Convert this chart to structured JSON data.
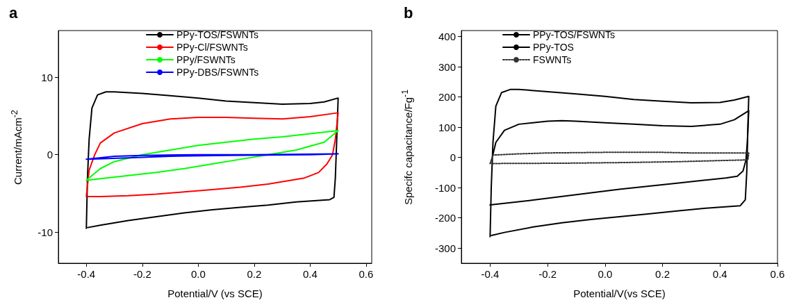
{
  "chart_data": [
    {
      "type": "line",
      "title": "a",
      "xlabel": "Potential/V (vs SCE)",
      "ylabel": "Current/mAcm$^{-2}$",
      "xlim": [
        -0.5,
        0.62
      ],
      "xticks": [
        -0.4,
        -0.2,
        {
          "value": 0,
          "label": "0.0"
        },
        0.2,
        0.4,
        0.6
      ],
      "ylim": [
        -14,
        16
      ],
      "yticks": [
        -10,
        0,
        10
      ],
      "grid": false,
      "legend": "top",
      "marker": "none",
      "line_style": "solid",
      "series": [
        {
          "name": "PPy-TOS/FSWNTs",
          "color": "#000000",
          "x": [
            -0.4,
            -0.396,
            -0.39,
            -0.38,
            -0.36,
            -0.33,
            -0.3,
            -0.2,
            -0.1,
            0,
            0.1,
            0.2,
            0.3,
            0.4,
            0.45,
            0.5,
            0.495,
            0.49,
            0.485,
            0.47,
            0.35,
            0.25,
            0.15,
            0.05,
            -0.05,
            -0.15,
            -0.25,
            -0.35,
            -0.395
          ],
          "values": [
            -9.5,
            -3,
            2,
            6,
            7.7,
            8.1,
            8.1,
            7.9,
            7.6,
            7.3,
            6.9,
            6.7,
            6.5,
            6.6,
            6.8,
            7.3,
            2,
            -3,
            -5.5,
            -5.8,
            -6.1,
            -6.5,
            -6.8,
            -7.1,
            -7.5,
            -8,
            -8.5,
            -9.1,
            -9.4
          ]
        },
        {
          "name": "PPy-Cl/FSWNTs",
          "color": "#ff0000",
          "x": [
            -0.4,
            -0.39,
            -0.37,
            -0.35,
            -0.3,
            -0.2,
            -0.1,
            0,
            0.1,
            0.2,
            0.3,
            0.4,
            0.5,
            0.49,
            0.48,
            0.46,
            0.43,
            0.38,
            0.25,
            0.15,
            0.05,
            -0.05,
            -0.15,
            -0.25,
            -0.35,
            -0.395
          ],
          "values": [
            -5.4,
            -2,
            0,
            1.5,
            2.8,
            4,
            4.6,
            4.8,
            4.8,
            4.7,
            4.6,
            4.9,
            5.4,
            2,
            0,
            -1.2,
            -2.3,
            -3,
            -3.8,
            -4.2,
            -4.5,
            -4.8,
            -5.1,
            -5.3,
            -5.4,
            -5.4
          ]
        },
        {
          "name": "PPy/FSWNTs",
          "color": "#00ff00",
          "x": [
            -0.4,
            -0.35,
            -0.3,
            -0.2,
            -0.1,
            0,
            0.1,
            0.2,
            0.3,
            0.4,
            0.5,
            0.45,
            0.35,
            0.25,
            0.15,
            0.05,
            -0.05,
            -0.15,
            -0.25,
            -0.35,
            -0.395
          ],
          "values": [
            -3.3,
            -1.8,
            -0.9,
            0,
            0.6,
            1.2,
            1.6,
            2,
            2.3,
            2.7,
            3.1,
            1.6,
            0.6,
            0,
            -0.6,
            -1.2,
            -1.8,
            -2.3,
            -2.7,
            -3.1,
            -3.3
          ]
        },
        {
          "name": "PPy-DBS/FSWNTs",
          "color": "#0000ff",
          "x": [
            -0.4,
            -0.3,
            -0.2,
            0,
            0.2,
            0.5,
            0.4,
            0.1,
            -0.1,
            -0.25,
            -0.395
          ],
          "values": [
            -0.6,
            -0.2,
            -0.1,
            0,
            0,
            0.1,
            0,
            -0.1,
            -0.2,
            -0.4,
            -0.6
          ]
        }
      ]
    },
    {
      "type": "line",
      "title": "b",
      "xlabel": "Potential/V(vs SCE)",
      "ylabel": "Specifc capacitance/Fg$^{-1}$",
      "xlim": [
        -0.5,
        0.6
      ],
      "xticks": [
        -0.4,
        -0.2,
        {
          "value": 0,
          "label": "0.0"
        },
        0.2,
        0.4,
        0.6
      ],
      "ylim": [
        -350,
        420
      ],
      "yticks": [
        -300,
        -200,
        -100,
        0,
        100,
        200,
        300,
        400
      ],
      "grid": false,
      "legend": "top",
      "marker": "none",
      "series": [
        {
          "name": "PPy-TOS/FSWNTs",
          "color": "#000000",
          "line_style": "solid",
          "x": [
            -0.4,
            -0.396,
            -0.39,
            -0.38,
            -0.36,
            -0.33,
            -0.3,
            -0.2,
            -0.1,
            0,
            0.1,
            0.2,
            0.3,
            0.4,
            0.45,
            0.5,
            0.497,
            0.493,
            0.488,
            0.47,
            0.35,
            0.25,
            0.15,
            0.05,
            -0.05,
            -0.15,
            -0.25,
            -0.35,
            -0.395
          ],
          "values": [
            -262,
            -100,
            50,
            170,
            215,
            225,
            225,
            218,
            210,
            202,
            192,
            186,
            181,
            182,
            190,
            202,
            100,
            -50,
            -140,
            -160,
            -168,
            -177,
            -187,
            -196,
            -205,
            -216,
            -230,
            -248,
            -258
          ]
        },
        {
          "name": "PPy-TOS",
          "color": "#000000",
          "line_style": "solid",
          "x": [
            -0.39,
            -0.38,
            -0.35,
            -0.3,
            -0.2,
            -0.15,
            -0.1,
            0,
            0.1,
            0.2,
            0.3,
            0.4,
            0.45,
            0.5,
            0.495,
            0.49,
            0.48,
            0.46,
            0.42,
            0.35,
            0.25,
            0.05,
            -0.25,
            -0.4
          ],
          "values": [
            10,
            50,
            90,
            110,
            120,
            122,
            120,
            115,
            110,
            105,
            103,
            110,
            125,
            155,
            50,
            -10,
            -45,
            -62,
            -68,
            -75,
            -85,
            -105,
            -141,
            -157
          ]
        },
        {
          "name": "FSWNTs",
          "color": "#333333",
          "line_style": "dotted",
          "x": [
            -0.4,
            -0.39,
            -0.3,
            -0.2,
            0,
            0.2,
            0.3,
            0.5,
            0.497,
            0.45,
            0.25,
            0.05,
            -0.15,
            -0.395
          ],
          "values": [
            -20,
            8,
            12,
            15,
            17,
            17,
            15,
            15,
            -8,
            -9,
            -14,
            -17,
            -19,
            -20
          ]
        }
      ]
    }
  ]
}
